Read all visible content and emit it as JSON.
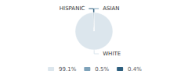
{
  "chart_data": {
    "type": "pie",
    "categories": [
      "WHITE",
      "ASIAN",
      "HISPANIC"
    ],
    "values": [
      99.1,
      0.5,
      0.4
    ],
    "value_labels": [
      "99.1%",
      "0.5%",
      "0.4%"
    ],
    "colors": [
      "#dce6ed",
      "#7fa3ba",
      "#2e5f7e"
    ],
    "legend": "bottom"
  }
}
